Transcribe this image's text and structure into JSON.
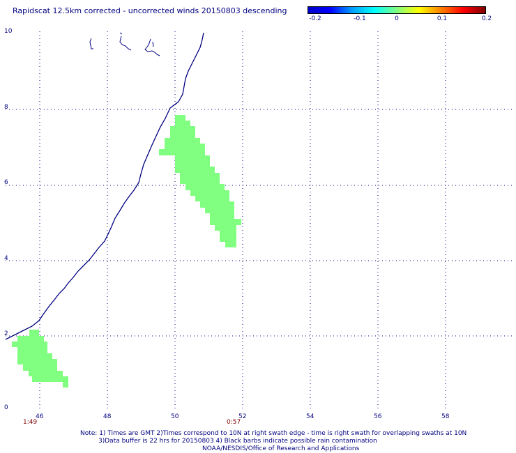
{
  "title": "Rapidscat 12.5km corrected - uncorrected winds 20150803 descending",
  "colorbar": {
    "labels": [
      "-0.2",
      "-0.1",
      "0",
      "0.1",
      "0.2"
    ],
    "stops": [
      "#0000c8",
      "#0000ff",
      "#00a0ff",
      "#00ffff",
      "#80ff80",
      "#ffff00",
      "#ff8000",
      "#ff0000",
      "#800000"
    ]
  },
  "map": {
    "lat_labels": [
      "10",
      "8",
      "6",
      "4",
      "2",
      "0"
    ],
    "lon_labels": [
      "46",
      "48",
      "50",
      "52",
      "54",
      "56",
      "58"
    ],
    "lat_range": [
      0,
      10
    ],
    "lon_range": [
      45,
      59.5
    ],
    "grid": true,
    "coastline_color": "#000080",
    "swath_color": "#80ff80",
    "grid_color": "#000080"
  },
  "times": [
    "1:49",
    "0:57"
  ],
  "notes": [
    "Note: 1) Times are GMT 2)Times correspond to 10N at right swath edge - time is right swath for overlapping swaths at 10N",
    "3)Data buffer is 22 hrs for 20150803 4) Black barbs indicate possible rain contamination",
    "NOAA/NESDIS/Office of Research and Applications"
  ]
}
